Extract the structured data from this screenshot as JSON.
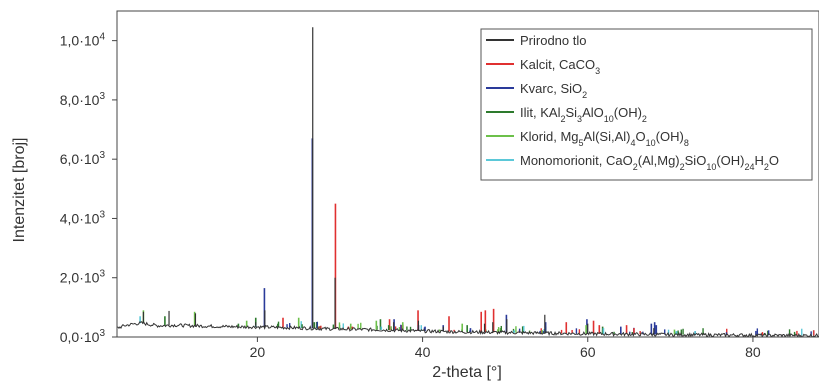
{
  "chart_data": {
    "type": "line",
    "title": "",
    "xlabel": "2-theta [°]",
    "ylabel": "Intenzitet [broj]",
    "xlim": [
      3,
      88
    ],
    "ylim": [
      0,
      11000
    ],
    "x_ticks": [
      20,
      40,
      60,
      80
    ],
    "x_tick_labels": [
      "20",
      "40",
      "60",
      "80"
    ],
    "y_ticks": [
      0,
      2000,
      4000,
      6000,
      8000,
      10000
    ],
    "y_tick_labels": [
      {
        "mant": "0,0·10",
        "exp": "3"
      },
      {
        "mant": "2,0·10",
        "exp": "3"
      },
      {
        "mant": "4,0·10",
        "exp": "3"
      },
      {
        "mant": "6,0·10",
        "exp": "3"
      },
      {
        "mant": "8,0·10",
        "exp": "3"
      },
      {
        "mant": "1,0·10",
        "exp": "4"
      }
    ],
    "grid": false,
    "legend_position": "top-right",
    "legend": [
      {
        "color": "#333333",
        "parts": [
          [
            "Prirodno tlo",
            "n"
          ]
        ]
      },
      {
        "color": "#e03030",
        "parts": [
          [
            "Kalcit, CaCO",
            "n"
          ],
          [
            "3",
            "sub"
          ]
        ]
      },
      {
        "color": "#2a3a9a",
        "parts": [
          [
            "Kvarc, SiO",
            "n"
          ],
          [
            "2",
            "sub"
          ]
        ]
      },
      {
        "color": "#2d7a2d",
        "parts": [
          [
            "Ilit, KAl",
            "n"
          ],
          [
            "2",
            "sub"
          ],
          [
            "Si",
            "n"
          ],
          [
            "3",
            "sub"
          ],
          [
            "AlO",
            "n"
          ],
          [
            "10",
            "sub"
          ],
          [
            "(OH)",
            "n"
          ],
          [
            "2",
            "sub"
          ]
        ]
      },
      {
        "color": "#6cc04a",
        "parts": [
          [
            "Klorid, Mg",
            "n"
          ],
          [
            "5",
            "sub"
          ],
          [
            "Al(Si,Al)",
            "n"
          ],
          [
            "4",
            "sub"
          ],
          [
            "O",
            "n"
          ],
          [
            "10",
            "sub"
          ],
          [
            "(OH)",
            "n"
          ],
          [
            "8",
            "sub"
          ]
        ]
      },
      {
        "color": "#5bc8d8",
        "parts": [
          [
            "Monomorionit, CaO",
            "n"
          ],
          [
            "2",
            "sub"
          ],
          [
            "(Al,Mg)",
            "n"
          ],
          [
            "2",
            "sub"
          ],
          [
            "SiO",
            "n"
          ],
          [
            "10",
            "sub"
          ],
          [
            "(OH)",
            "n"
          ],
          [
            "24",
            "sub"
          ],
          [
            "H",
            "n"
          ],
          [
            "2",
            "sub"
          ],
          [
            "O",
            "n"
          ]
        ]
      }
    ],
    "series": [
      {
        "name": "Prirodno tlo",
        "color": "#333333",
        "baseline": [
          [
            3,
            300
          ],
          [
            4,
            390
          ],
          [
            5,
            440
          ],
          [
            6,
            470
          ],
          [
            7,
            420
          ],
          [
            8,
            380
          ],
          [
            10,
            400
          ],
          [
            12,
            380
          ],
          [
            15,
            360
          ],
          [
            18,
            340
          ],
          [
            20,
            340
          ],
          [
            23,
            320
          ],
          [
            26,
            300
          ],
          [
            28,
            280
          ],
          [
            30,
            270
          ],
          [
            35,
            240
          ],
          [
            40,
            200
          ],
          [
            45,
            170
          ],
          [
            50,
            150
          ],
          [
            55,
            130
          ],
          [
            60,
            110
          ],
          [
            70,
            80
          ],
          [
            80,
            60
          ],
          [
            88,
            50
          ]
        ],
        "peaks": [
          [
            6.2,
            850
          ],
          [
            9.3,
            880
          ],
          [
            12.5,
            800
          ],
          [
            19.8,
            500
          ],
          [
            20.9,
            900
          ],
          [
            26.7,
            10450
          ],
          [
            29.4,
            2000
          ],
          [
            36.5,
            500
          ],
          [
            39.5,
            550
          ],
          [
            42.5,
            350
          ],
          [
            47.5,
            450
          ],
          [
            48.5,
            500
          ],
          [
            50.2,
            600
          ],
          [
            54.8,
            750
          ],
          [
            60,
            450
          ],
          [
            68,
            300
          ]
        ]
      },
      {
        "name": "Kalcit, CaCO3",
        "color": "#e03030",
        "peaks": [
          [
            23.1,
            650
          ],
          [
            29.45,
            4500
          ],
          [
            31.5,
            350
          ],
          [
            36.0,
            600
          ],
          [
            39.45,
            900
          ],
          [
            43.2,
            700
          ],
          [
            47.1,
            850
          ],
          [
            47.6,
            900
          ],
          [
            48.6,
            950
          ],
          [
            57.4,
            500
          ],
          [
            60.7,
            550
          ],
          [
            61.4,
            400
          ],
          [
            64.7,
            400
          ],
          [
            65.6,
            300
          ]
        ]
      },
      {
        "name": "Kvarc, SiO2",
        "color": "#2a3a9a",
        "peaks": [
          [
            20.85,
            1650
          ],
          [
            26.65,
            6700
          ],
          [
            36.55,
            600
          ],
          [
            39.5,
            400
          ],
          [
            40.3,
            350
          ],
          [
            42.5,
            400
          ],
          [
            45.8,
            300
          ],
          [
            50.15,
            750
          ],
          [
            54.9,
            500
          ],
          [
            59.9,
            600
          ],
          [
            64.0,
            350
          ],
          [
            67.7,
            450
          ],
          [
            68.1,
            500
          ],
          [
            68.3,
            400
          ]
        ]
      },
      {
        "name": "Ilit, KAl2Si3AlO10(OH)2",
        "color": "#2d7a2d",
        "peaks": [
          [
            8.8,
            700
          ],
          [
            17.7,
            450
          ],
          [
            19.8,
            650
          ],
          [
            26.9,
            500
          ],
          [
            34.9,
            600
          ],
          [
            35.9,
            400
          ],
          [
            45.4,
            400
          ],
          [
            61.8,
            350
          ]
        ]
      },
      {
        "name": "Klorid, Mg5Al(Si,Al)4O10(OH)8",
        "color": "#6cc04a",
        "peaks": [
          [
            6.2,
            900
          ],
          [
            12.4,
            850
          ],
          [
            18.7,
            550
          ],
          [
            25.0,
            650
          ],
          [
            31.3,
            450
          ],
          [
            34.4,
            550
          ],
          [
            37.6,
            500
          ],
          [
            44.8,
            450
          ],
          [
            59.8,
            400
          ],
          [
            70.5,
            250
          ]
        ]
      },
      {
        "name": "Monomorionit, CaO2(Al,Mg)2SiO10(OH)24H2O",
        "color": "#5bc8d8",
        "peaks": [
          [
            5.8,
            700
          ],
          [
            19.8,
            400
          ],
          [
            35.0,
            350
          ],
          [
            61.9,
            300
          ],
          [
            73.0,
            200
          ]
        ]
      }
    ],
    "minor_peaks_range": [
      22,
      88
    ],
    "minor_peaks_count": 90
  }
}
